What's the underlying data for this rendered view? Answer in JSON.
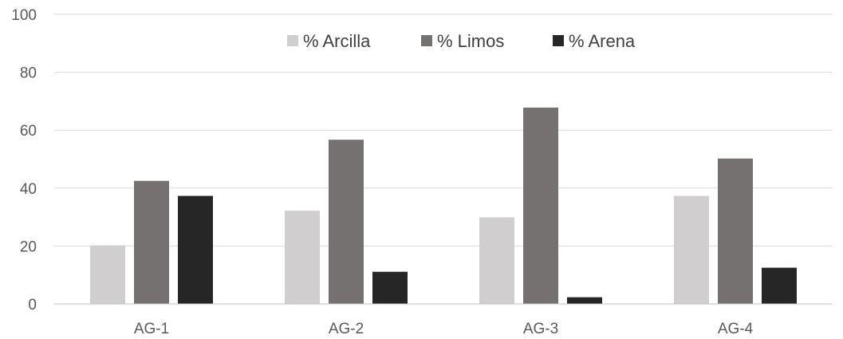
{
  "chart_data": {
    "type": "bar",
    "categories": [
      "AG-1",
      "AG-2",
      "AG-3",
      "AG-4"
    ],
    "series": [
      {
        "name": "% Arcilla",
        "color": "#d0cece",
        "values": [
          20.2,
          32.2,
          29.9,
          37.3
        ]
      },
      {
        "name": "% Limos",
        "color": "#767171",
        "values": [
          42.5,
          56.7,
          67.8,
          50.2
        ]
      },
      {
        "name": "% Arena",
        "color": "#262626",
        "values": [
          37.3,
          11.1,
          2.3,
          12.5
        ]
      }
    ],
    "title": "",
    "xlabel": "",
    "ylabel": "",
    "ylim": [
      0,
      100
    ],
    "yticks": [
      "0",
      "20",
      "40",
      "60",
      "80",
      "100"
    ],
    "grid": true,
    "legend_position": "top-center"
  }
}
